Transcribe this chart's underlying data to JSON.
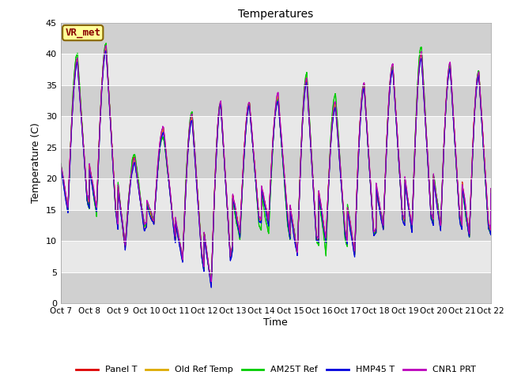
{
  "title": "Temperatures",
  "ylabel": "Temperature (C)",
  "xlabel": "Time",
  "ylim": [
    0,
    45
  ],
  "xlim": [
    0,
    360
  ],
  "x_tick_labels": [
    "Oct 7",
    "Oct 8",
    "Oct 9",
    "Oct 10",
    "Oct 11",
    "Oct 12",
    "Oct 13",
    "Oct 14",
    "Oct 15",
    "Oct 16",
    "Oct 17",
    "Oct 18",
    "Oct 19",
    "Oct 20",
    "Oct 21",
    "Oct 22"
  ],
  "x_tick_positions": [
    0,
    24,
    48,
    72,
    96,
    120,
    144,
    168,
    192,
    216,
    240,
    264,
    288,
    312,
    336,
    360
  ],
  "legend_labels": [
    "Panel T",
    "Old Ref Temp",
    "AM25T Ref",
    "HMP45 T",
    "CNR1 PRT"
  ],
  "line_colors": [
    "#dd0000",
    "#ddaa00",
    "#00cc00",
    "#0000dd",
    "#bb00bb"
  ],
  "bg_color": "#ffffff",
  "plot_bg_color": "#e8e8e8",
  "annotation_text": "VR_met",
  "annotation_bg": "#ffff99",
  "annotation_border": "#886600",
  "day_mins": [
    15,
    15,
    9,
    13,
    7,
    3,
    11,
    13,
    8,
    10,
    8,
    12,
    12,
    12,
    11,
    10
  ],
  "day_maxs": [
    39,
    41,
    23,
    28,
    30,
    32,
    32,
    33,
    36,
    32,
    35,
    38,
    40,
    38,
    37,
    36
  ],
  "am25t_day_mins": [
    15,
    14,
    9,
    13,
    7,
    3,
    10,
    11,
    8,
    8,
    8,
    12,
    12,
    12,
    10,
    10
  ],
  "am25t_day_maxs": [
    40,
    42,
    24,
    27,
    31,
    32,
    32,
    33,
    37,
    34,
    35,
    38,
    41,
    38,
    37,
    37
  ]
}
